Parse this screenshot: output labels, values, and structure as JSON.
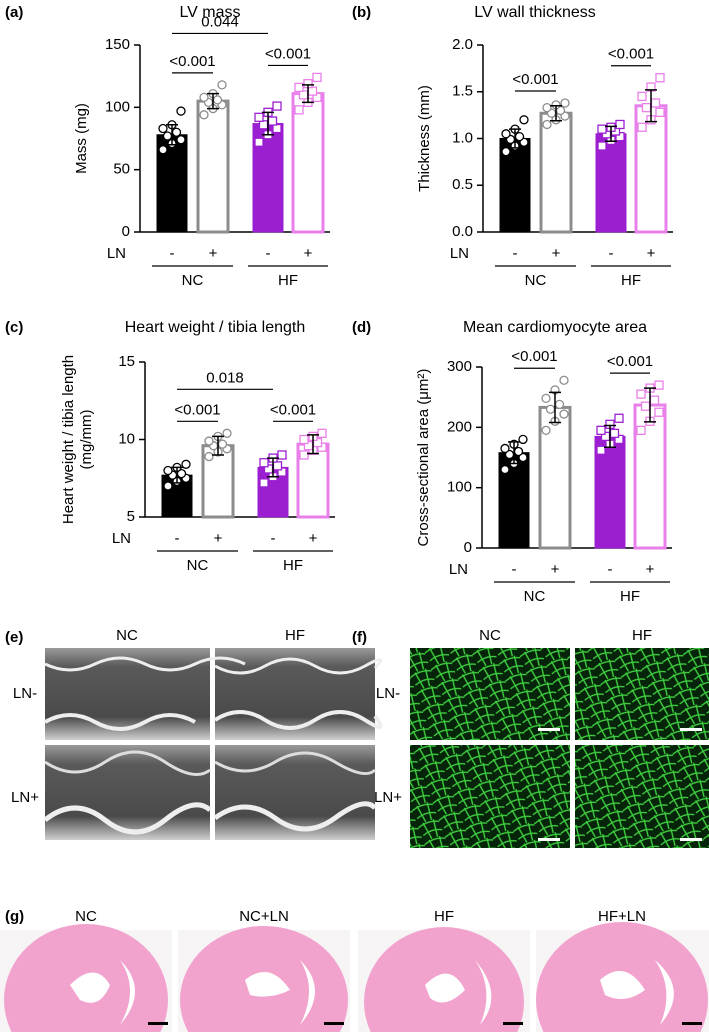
{
  "chart_data": [
    {
      "type": "bar",
      "panel": "(a)",
      "title": "LV mass",
      "y_label": [
        "Mass (mg)"
      ],
      "x_label": "LN",
      "categories": [
        "-",
        "+",
        "-",
        "+"
      ],
      "groups": [
        "NC",
        "HF"
      ],
      "values": [
        78,
        105,
        87,
        111
      ],
      "errors": [
        8,
        6,
        9,
        7
      ],
      "points": [
        [
          66,
          71,
          74,
          77,
          80,
          83,
          86,
          97
        ],
        [
          94,
          99,
          102,
          104,
          106,
          108,
          111,
          118
        ],
        [
          72,
          78,
          83,
          86,
          89,
          92,
          96,
          101
        ],
        [
          98,
          104,
          108,
          110,
          113,
          116,
          119,
          124
        ]
      ],
      "colors": [
        "#000000",
        "#8c8c8c",
        "#9b1fd1",
        "#e97fe9"
      ],
      "filled": [
        true,
        false,
        true,
        false
      ],
      "markers": [
        "circle",
        "circle",
        "square",
        "square"
      ],
      "ylim": [
        0,
        150
      ],
      "yticks": [
        0,
        50,
        100,
        150
      ],
      "comparisons": [
        {
          "bars": [
            0,
            1
          ],
          "label": "<0.001"
        },
        {
          "bars": [
            2,
            3
          ],
          "label": "<0.001"
        },
        {
          "bars": [
            0,
            2
          ],
          "label": "0.044"
        }
      ]
    },
    {
      "type": "bar",
      "panel": "(b)",
      "title": "LV wall thickness",
      "y_label": [
        "Thickness (mm)"
      ],
      "x_label": "LN",
      "categories": [
        "-",
        "+",
        "-",
        "+"
      ],
      "groups": [
        "NC",
        "HF"
      ],
      "values": [
        1.0,
        1.27,
        1.05,
        1.35
      ],
      "errors": [
        0.1,
        0.08,
        0.08,
        0.17
      ],
      "points": [
        [
          0.86,
          0.92,
          0.96,
          0.99,
          1.02,
          1.05,
          1.1,
          1.2
        ],
        [
          1.15,
          1.2,
          1.24,
          1.27,
          1.3,
          1.33,
          1.36,
          1.38
        ],
        [
          0.92,
          0.98,
          1.02,
          1.05,
          1.08,
          1.1,
          1.12,
          1.15
        ],
        [
          1.12,
          1.2,
          1.28,
          1.33,
          1.38,
          1.45,
          1.55,
          1.65
        ]
      ],
      "colors": [
        "#000000",
        "#8c8c8c",
        "#9b1fd1",
        "#e97fe9"
      ],
      "filled": [
        true,
        false,
        true,
        false
      ],
      "markers": [
        "circle",
        "circle",
        "square",
        "square"
      ],
      "ylim": [
        0,
        2
      ],
      "yticks": [
        {
          "value": 0,
          "label": "0.0"
        },
        {
          "value": 0.5,
          "label": "0.5"
        },
        {
          "value": 1,
          "label": "1.0"
        },
        {
          "value": 1.5,
          "label": "1.5"
        },
        {
          "value": 2,
          "label": "2.0"
        }
      ],
      "comparisons": [
        {
          "bars": [
            0,
            1
          ],
          "label": "<0.001"
        },
        {
          "bars": [
            2,
            3
          ],
          "label": "<0.001"
        }
      ]
    },
    {
      "type": "bar",
      "panel": "(c)",
      "title": "Heart weight / tibia length",
      "y_label": [
        "Heart weight / tibia length",
        "(mg/mm)"
      ],
      "x_label": "LN",
      "categories": [
        "-",
        "+",
        "-",
        "+"
      ],
      "groups": [
        "NC",
        "HF"
      ],
      "values": [
        7.7,
        9.6,
        8.2,
        9.7
      ],
      "errors": [
        0.5,
        0.6,
        0.6,
        0.6
      ],
      "points": [
        [
          7.0,
          7.3,
          7.5,
          7.7,
          7.8,
          8.0,
          8.2,
          8.4
        ],
        [
          8.9,
          9.2,
          9.4,
          9.6,
          9.7,
          9.9,
          10.2,
          10.4
        ],
        [
          7.2,
          7.6,
          7.9,
          8.1,
          8.3,
          8.5,
          8.8,
          9.0
        ],
        [
          9.0,
          9.3,
          9.5,
          9.6,
          9.8,
          10.0,
          10.2,
          10.4
        ]
      ],
      "colors": [
        "#000000",
        "#8c8c8c",
        "#9b1fd1",
        "#e97fe9"
      ],
      "filled": [
        true,
        false,
        true,
        false
      ],
      "markers": [
        "circle",
        "circle",
        "square",
        "square"
      ],
      "ylim": [
        5,
        15
      ],
      "yticks": [
        5,
        10,
        15
      ],
      "comparisons": [
        {
          "bars": [
            0,
            1
          ],
          "label": "<0.001"
        },
        {
          "bars": [
            2,
            3
          ],
          "label": "<0.001"
        },
        {
          "bars": [
            0,
            2
          ],
          "label": "0.018"
        }
      ]
    },
    {
      "type": "bar",
      "panel": "(d)",
      "title": "Mean cardiomyocyte area",
      "y_label": [
        "Cross-sectional area (μm²)"
      ],
      "x_label": "LN",
      "categories": [
        "-",
        "+",
        "-",
        "+"
      ],
      "groups": [
        "NC",
        "HF"
      ],
      "values": [
        158,
        233,
        185,
        237
      ],
      "errors": [
        18,
        25,
        18,
        28
      ],
      "points": [
        [
          130,
          140,
          150,
          155,
          160,
          165,
          172,
          180
        ],
        [
          195,
          210,
          222,
          230,
          238,
          248,
          262,
          278
        ],
        [
          162,
          172,
          180,
          185,
          190,
          195,
          205,
          215
        ],
        [
          195,
          210,
          225,
          235,
          245,
          255,
          265,
          270
        ]
      ],
      "colors": [
        "#000000",
        "#8c8c8c",
        "#9b1fd1",
        "#e97fe9"
      ],
      "filled": [
        true,
        false,
        true,
        false
      ],
      "markers": [
        "circle",
        "circle",
        "square",
        "square"
      ],
      "ylim": [
        0,
        300
      ],
      "yticks": [
        0,
        100,
        200,
        300
      ],
      "comparisons": [
        {
          "bars": [
            0,
            1
          ],
          "label": "<0.001"
        },
        {
          "bars": [
            2,
            3
          ],
          "label": "<0.001"
        }
      ]
    }
  ],
  "echo_panel": {
    "label": "(e)",
    "columns": [
      "NC",
      "HF"
    ],
    "rows": [
      "LN-",
      "LN+"
    ]
  },
  "staining_panel": {
    "label": "(f)",
    "columns": [
      "NC",
      "HF"
    ],
    "rows": [
      "LN-",
      "LN+"
    ]
  },
  "histology_panel": {
    "label": "(g)",
    "columns": [
      "NC",
      "NC+LN",
      "HF",
      "HF+LN"
    ]
  }
}
